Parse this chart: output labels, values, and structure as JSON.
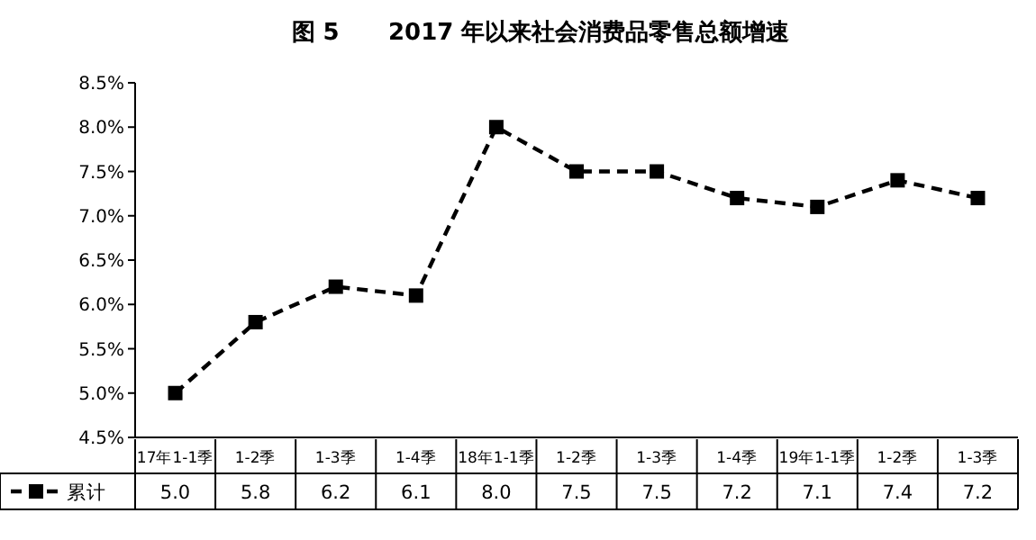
{
  "chart_data": {
    "type": "line",
    "title": "图 5      2017 年以来社会消费品零售总额增速",
    "categories": [
      "17年1-1季",
      "1-2季",
      "1-3季",
      "1-4季",
      "18年1-1季",
      "1-2季",
      "1-3季",
      "1-4季",
      "19年1-1季",
      "1-2季",
      "1-3季"
    ],
    "series": [
      {
        "name": "累计",
        "color": "#000000",
        "values": [
          5.0,
          5.8,
          6.2,
          6.1,
          8.0,
          7.5,
          7.5,
          7.2,
          7.1,
          7.4,
          7.2
        ],
        "value_labels": [
          "5.0",
          "5.8",
          "6.2",
          "6.1",
          "8.0",
          "7.5",
          "7.5",
          "7.2",
          "7.1",
          "7.4",
          "7.2"
        ]
      }
    ],
    "ylim": [
      4.5,
      8.5
    ],
    "yticks": [
      {
        "value": 4.5,
        "label": "4.5%"
      },
      {
        "value": 5.0,
        "label": "5.0%"
      },
      {
        "value": 5.5,
        "label": "5.5%"
      },
      {
        "value": 6.0,
        "label": "6.0%"
      },
      {
        "value": 6.5,
        "label": "6.5%"
      },
      {
        "value": 7.0,
        "label": "7.0%"
      },
      {
        "value": 7.5,
        "label": "7.5%"
      },
      {
        "value": 8.0,
        "label": "8.0%"
      },
      {
        "value": 8.5,
        "label": "8.5%"
      }
    ],
    "marker": "square",
    "line_style": "dashed",
    "legend": "bottom left"
  }
}
